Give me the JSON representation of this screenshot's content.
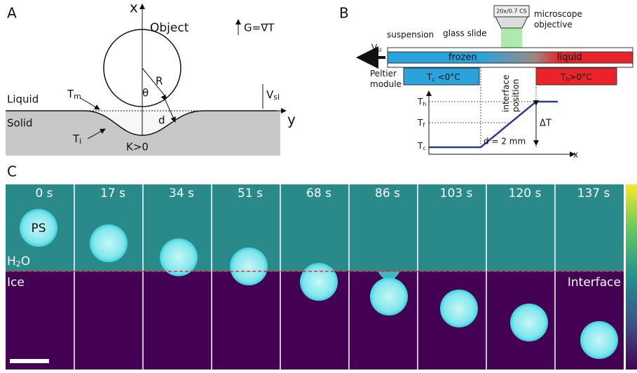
{
  "panel_a": {
    "label": "A",
    "axis_x": "x",
    "axis_y": "y",
    "object": "Object",
    "gradient": "G=∇T",
    "radius": "R",
    "angle": "θ",
    "liquid": "Liquid",
    "solid": "Solid",
    "t_m": {
      "base": "T",
      "sub": "m"
    },
    "v_sl": {
      "base": "V",
      "sub": "sl"
    },
    "distance": "d",
    "t_i": {
      "base": "T",
      "sub": "i"
    },
    "curvature": "K>0"
  },
  "panel_b": {
    "label": "B",
    "objective_label": "20x/0.7 CS",
    "microscope": [
      "microscope",
      "objective"
    ],
    "glass_slide": "glass slide",
    "suspension": "suspension",
    "v_sl": {
      "base": "V",
      "sub": "sl"
    },
    "frozen": "frozen",
    "liquid": "liquid",
    "peltier": [
      "Peltier",
      "module"
    ],
    "t_c_cond": {
      "base": "T",
      "sub": "c",
      "rest": " <0°C"
    },
    "t_h_cond": {
      "base": "T",
      "sub": "h",
      "rest": ">0°C"
    },
    "interface_position": [
      "interface",
      "position"
    ],
    "t_h": {
      "base": "T",
      "sub": "h"
    },
    "t_f": {
      "base": "T",
      "sub": "f"
    },
    "t_c": {
      "base": "T",
      "sub": "c"
    },
    "delta_t": "ΔT",
    "distance": "d = 2 mm",
    "axis_x": "x"
  },
  "panel_c": {
    "label": "C",
    "times": [
      "0 s",
      "17 s",
      "34 s",
      "51 s",
      "68 s",
      "86 s",
      "103 s",
      "120 s",
      "137 s"
    ],
    "ps": "PS",
    "water": {
      "base": "H",
      "sub": "2",
      "rest": "O"
    },
    "ice": "Ice",
    "interface": "Interface"
  }
}
